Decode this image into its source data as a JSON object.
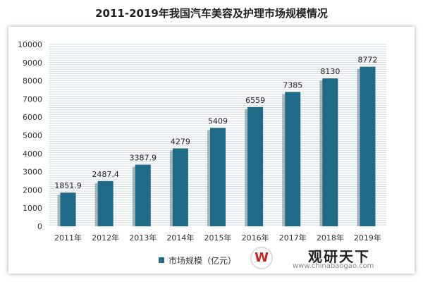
{
  "chart_data": {
    "type": "bar",
    "title": "2011-2019年我国汽车美容及护理市场规模情况",
    "categories": [
      "2011年",
      "2012年",
      "2013年",
      "2014年",
      "2015年",
      "2016年",
      "2017年",
      "2018年",
      "2019年"
    ],
    "series": [
      {
        "name": "市场规模（亿元）",
        "values": [
          1851.9,
          2487.4,
          3387.9,
          4279,
          5409,
          6559,
          7385,
          8130,
          8772
        ]
      }
    ],
    "data_labels": [
      "1851.9",
      "2487.4",
      "3387.9",
      "4279",
      "5409",
      "6559",
      "7385",
      "8130",
      "8772"
    ],
    "ylim": [
      0,
      10000
    ],
    "yticks": [
      0,
      1000,
      2000,
      3000,
      4000,
      5000,
      6000,
      7000,
      8000,
      9000,
      10000
    ],
    "xlabel": "",
    "ylabel": "",
    "grid": true,
    "legend": "bottom",
    "bar_color": "#1f6b87"
  },
  "watermark": {
    "logo": "W",
    "brand": "观研天下",
    "url": "www.chinabaogao.com"
  }
}
